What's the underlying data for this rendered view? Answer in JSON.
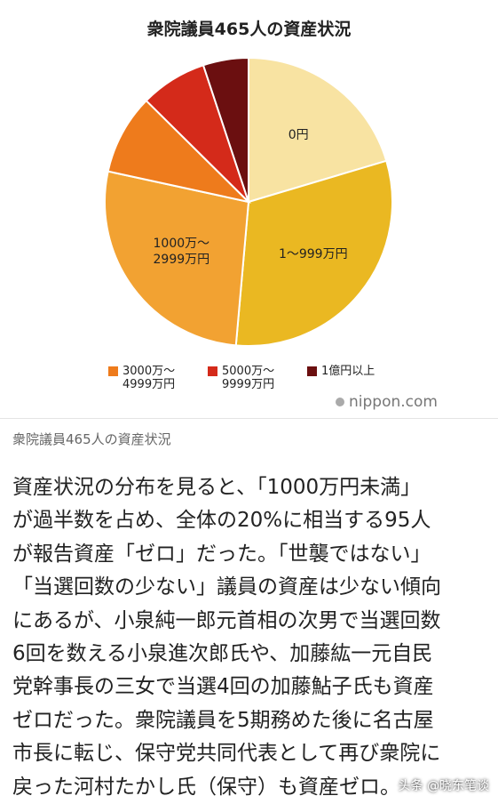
{
  "chart_data": {
    "type": "pie",
    "title": "衆院議員465人の資産状況",
    "categories": [
      "0円",
      "1～999万円",
      "1000万～\n2999万円",
      "3000万～\n4999万円",
      "5000万～\n9999万円",
      "1億円以上"
    ],
    "values": [
      20.4,
      31,
      27,
      9,
      7.5,
      5.1
    ],
    "colors": [
      "#f8e3a2",
      "#eab822",
      "#f2a232",
      "#ee7b1c",
      "#d42a1a",
      "#6b0f10"
    ],
    "source": "nippon.com"
  },
  "caption": "衆院議員465人の資産状況",
  "body_lines": [
    "資産状況の分布を見ると、「1000万円未満」",
    "が過半数を占め、全体の20%に相当する95人",
    "が報告資産「ゼロ」だった。「世襲ではない」",
    "「当選回数の少ない」議員の資産は少ない傾向",
    "にあるが、小泉純一郎元首相の次男で当選回数",
    "6回を数える小泉進次郎氏や、加藤紘一元自民",
    "党幹事長の三女で当選4回の加藤鮎子氏も資産",
    "ゼロだった。衆院議員を5期務めた後に名古屋",
    "市長に転じ、保守党共同代表として再び衆院に",
    "戻った河村たかし氏（保守）も資産ゼロ。"
  ],
  "watermark": "头条 @晓东笔谈"
}
